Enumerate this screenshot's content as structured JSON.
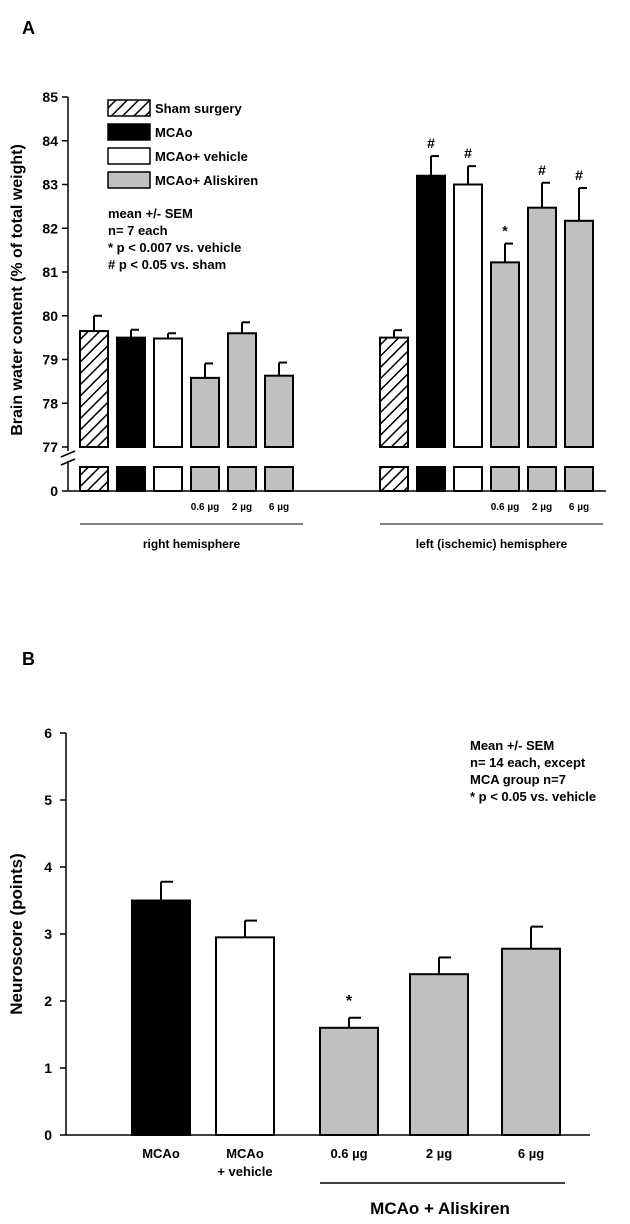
{
  "panel_a_label": "A",
  "panel_b_label": "B",
  "colors": {
    "black": "#000000",
    "white": "#ffffff",
    "gray": "#c0c0c0"
  },
  "chart_data": [
    {
      "type": "bar",
      "panel": "A",
      "ylabel": "Brain water content (% of total weight)",
      "ylim": [
        77,
        85
      ],
      "yticks": [
        "85",
        "84",
        "83",
        "82",
        "81",
        "80",
        "79",
        "78",
        "77"
      ],
      "y_break_tick": "0",
      "legend": [
        {
          "name": "Sham surgery",
          "fill": "hatch"
        },
        {
          "name": "MCAo",
          "fill": "black"
        },
        {
          "name": "MCAo+ vehicle",
          "fill": "white"
        },
        {
          "name": "MCAo+ Aliskiren",
          "fill": "gray"
        }
      ],
      "stats_note": [
        "mean +/- SEM",
        "n= 7 each",
        "* p < 0.007 vs. vehicle",
        "# p < 0.05 vs. sham"
      ],
      "groups": [
        {
          "name": "right hemisphere",
          "bars": [
            {
              "series": "Sham surgery",
              "fill": "hatch",
              "value": 79.65,
              "sem": 0.35,
              "dose": "",
              "mark": ""
            },
            {
              "series": "MCAo",
              "fill": "black",
              "value": 79.5,
              "sem": 0.18,
              "dose": "",
              "mark": ""
            },
            {
              "series": "MCAo+ vehicle",
              "fill": "white",
              "value": 79.48,
              "sem": 0.12,
              "dose": "",
              "mark": ""
            },
            {
              "series": "MCAo+ Aliskiren",
              "fill": "gray",
              "value": 78.58,
              "sem": 0.33,
              "dose": "0.6 µg",
              "mark": ""
            },
            {
              "series": "MCAo+ Aliskiren",
              "fill": "gray",
              "value": 79.6,
              "sem": 0.25,
              "dose": "2 µg",
              "mark": ""
            },
            {
              "series": "MCAo+ Aliskiren",
              "fill": "gray",
              "value": 78.63,
              "sem": 0.3,
              "dose": "6 µg",
              "mark": ""
            }
          ]
        },
        {
          "name": "left (ischemic) hemisphere",
          "bars": [
            {
              "series": "Sham surgery",
              "fill": "hatch",
              "value": 79.5,
              "sem": 0.17,
              "dose": "",
              "mark": ""
            },
            {
              "series": "MCAo",
              "fill": "black",
              "value": 83.2,
              "sem": 0.45,
              "dose": "",
              "mark": "#"
            },
            {
              "series": "MCAo+ vehicle",
              "fill": "white",
              "value": 83.0,
              "sem": 0.42,
              "dose": "",
              "mark": "#"
            },
            {
              "series": "MCAo+ Aliskiren",
              "fill": "gray",
              "value": 81.22,
              "sem": 0.43,
              "dose": "0.6 µg",
              "mark": "*"
            },
            {
              "series": "MCAo+ Aliskiren",
              "fill": "gray",
              "value": 82.47,
              "sem": 0.57,
              "dose": "2 µg",
              "mark": "#"
            },
            {
              "series": "MCAo+ Aliskiren",
              "fill": "gray",
              "value": 82.17,
              "sem": 0.75,
              "dose": "6 µg",
              "mark": "#"
            }
          ]
        }
      ]
    },
    {
      "type": "bar",
      "panel": "B",
      "ylabel": "Neuroscore (points)",
      "ylim": [
        0,
        6
      ],
      "yticks": [
        "0",
        "1",
        "2",
        "3",
        "4",
        "5",
        "6"
      ],
      "stats_note": [
        "Mean +/- SEM",
        "n= 14 each, except",
        "MCA group n=7",
        "* p < 0.05 vs. vehicle"
      ],
      "bars": [
        {
          "label": "MCAo",
          "label2": "",
          "fill": "black",
          "value": 3.5,
          "sem": 0.28,
          "mark": ""
        },
        {
          "label": "MCAo",
          "label2": "+ vehicle",
          "fill": "white",
          "value": 2.95,
          "sem": 0.25,
          "mark": ""
        },
        {
          "label": "0.6 µg",
          "label2": "",
          "fill": "gray",
          "value": 1.6,
          "sem": 0.15,
          "mark": "*"
        },
        {
          "label": "2 µg",
          "label2": "",
          "fill": "gray",
          "value": 2.4,
          "sem": 0.25,
          "mark": ""
        },
        {
          "label": "6 µg",
          "label2": "",
          "fill": "gray",
          "value": 2.78,
          "sem": 0.33,
          "mark": ""
        }
      ],
      "group_label": "MCAo + Aliskiren"
    }
  ]
}
